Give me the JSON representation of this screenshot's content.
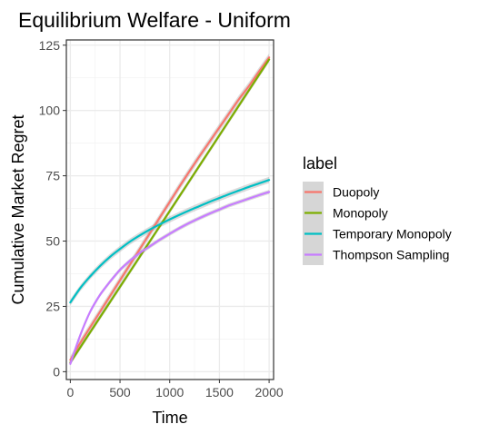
{
  "chart_data": {
    "type": "line",
    "title": "Equilibrium Welfare - Uniform",
    "xlabel": "Time",
    "ylabel": "Cumulative Market Regret",
    "xlim": [
      -40,
      2045
    ],
    "ylim": [
      -3,
      127
    ],
    "x_ticks": [
      0,
      500,
      1000,
      1500,
      2000
    ],
    "x_tick_labels": [
      "0",
      "500",
      "1000",
      "1500",
      "2000"
    ],
    "y_ticks": [
      0,
      25,
      50,
      75,
      100,
      125
    ],
    "y_tick_labels": [
      "0",
      "25",
      "50",
      "75",
      "100",
      "125"
    ],
    "grid": true,
    "legend": {
      "title": "label",
      "position": "right"
    },
    "x": [
      0,
      100,
      200,
      300,
      400,
      500,
      600,
      700,
      800,
      900,
      1000,
      1100,
      1200,
      1300,
      1400,
      1500,
      1600,
      1700,
      1800,
      1900,
      2000
    ],
    "series": [
      {
        "name": "Duopoly",
        "color": "#F8766D",
        "values": [
          4.5,
          11.0,
          17.0,
          23.0,
          29.0,
          35.0,
          41.0,
          47.0,
          53.0,
          59.0,
          65.0,
          71.0,
          76.8,
          82.5,
          88.0,
          93.5,
          99.0,
          104.5,
          109.5,
          115.0,
          120.3
        ],
        "band": 1.5
      },
      {
        "name": "Monopoly",
        "color": "#7CAE00",
        "values": [
          3.5,
          9.3,
          15.1,
          20.9,
          26.7,
          32.5,
          38.3,
          44.1,
          49.9,
          55.7,
          61.5,
          67.3,
          73.1,
          78.9,
          84.7,
          90.5,
          96.3,
          102.1,
          107.9,
          113.7,
          119.5
        ],
        "band": 1.0
      },
      {
        "name": "Temporary Monopoly",
        "color": "#00BFC4",
        "values": [
          26.5,
          32.0,
          36.5,
          40.5,
          44.0,
          47.0,
          49.8,
          52.2,
          54.4,
          56.4,
          58.3,
          60.1,
          61.8,
          63.4,
          65.0,
          66.5,
          68.0,
          69.4,
          70.8,
          72.1,
          73.4
        ],
        "band": 1.2
      },
      {
        "name": "Thompson Sampling",
        "color": "#C77CFF",
        "values": [
          3.0,
          14.0,
          23.0,
          29.5,
          34.5,
          39.0,
          42.5,
          45.5,
          48.0,
          50.5,
          52.8,
          55.0,
          57.0,
          58.8,
          60.5,
          62.1,
          63.7,
          65.0,
          66.3,
          67.6,
          68.8
        ],
        "band": 0.8
      }
    ]
  }
}
